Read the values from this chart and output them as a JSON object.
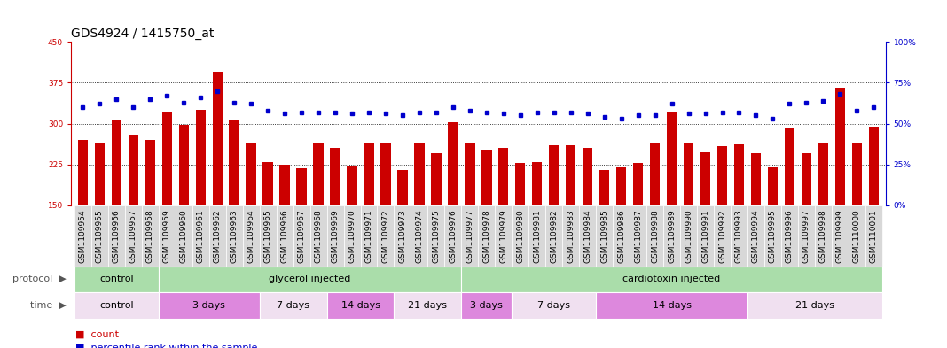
{
  "title": "GDS4924 / 1415750_at",
  "samples": [
    "GSM1109954",
    "GSM1109955",
    "GSM1109956",
    "GSM1109957",
    "GSM1109958",
    "GSM1109959",
    "GSM1109960",
    "GSM1109961",
    "GSM1109962",
    "GSM1109963",
    "GSM1109964",
    "GSM1109965",
    "GSM1109966",
    "GSM1109967",
    "GSM1109968",
    "GSM1109969",
    "GSM1109970",
    "GSM1109971",
    "GSM1109972",
    "GSM1109973",
    "GSM1109974",
    "GSM1109975",
    "GSM1109976",
    "GSM1109977",
    "GSM1109978",
    "GSM1109979",
    "GSM1109980",
    "GSM1109981",
    "GSM1109982",
    "GSM1109983",
    "GSM1109984",
    "GSM1109985",
    "GSM1109986",
    "GSM1109987",
    "GSM1109988",
    "GSM1109989",
    "GSM1109990",
    "GSM1109991",
    "GSM1109992",
    "GSM1109993",
    "GSM1109994",
    "GSM1109995",
    "GSM1109996",
    "GSM1109997",
    "GSM1109998",
    "GSM1109999",
    "GSM1110000",
    "GSM1110001"
  ],
  "counts": [
    270,
    265,
    308,
    280,
    270,
    320,
    298,
    325,
    395,
    305,
    265,
    230,
    225,
    218,
    265,
    255,
    222,
    265,
    263,
    215,
    265,
    245,
    303,
    265,
    252,
    255,
    228,
    230,
    260,
    260,
    255,
    215,
    220,
    228,
    263,
    320,
    265,
    248,
    258,
    262,
    245,
    220,
    293,
    245,
    263,
    365,
    265,
    295
  ],
  "percentiles": [
    60,
    62,
    65,
    60,
    65,
    67,
    63,
    66,
    70,
    63,
    62,
    58,
    56,
    57,
    57,
    57,
    56,
    57,
    56,
    55,
    57,
    57,
    60,
    58,
    57,
    56,
    55,
    57,
    57,
    57,
    56,
    54,
    53,
    55,
    55,
    62,
    56,
    56,
    57,
    57,
    55,
    53,
    62,
    63,
    64,
    68,
    58,
    60
  ],
  "ylim_left": [
    150,
    450
  ],
  "ylim_right": [
    0,
    100
  ],
  "yticks_left": [
    150,
    225,
    300,
    375,
    450
  ],
  "yticks_right": [
    0,
    25,
    50,
    75,
    100
  ],
  "bar_color": "#cc0000",
  "dot_color": "#0000cc",
  "bar_bottom": 150,
  "proto_segs": [
    {
      "label": "control",
      "start": 0,
      "end": 4,
      "color": "#aaddaa"
    },
    {
      "label": "glycerol injected",
      "start": 5,
      "end": 22,
      "color": "#aaddaa"
    },
    {
      "label": "cardiotoxin injected",
      "start": 23,
      "end": 47,
      "color": "#aaddaa"
    }
  ],
  "time_segs": [
    {
      "label": "control",
      "start": 0,
      "end": 4,
      "color": "#f0e0f0"
    },
    {
      "label": "3 days",
      "start": 5,
      "end": 10,
      "color": "#dd88dd"
    },
    {
      "label": "7 days",
      "start": 11,
      "end": 14,
      "color": "#f0e0f0"
    },
    {
      "label": "14 days",
      "start": 15,
      "end": 18,
      "color": "#dd88dd"
    },
    {
      "label": "21 days",
      "start": 19,
      "end": 22,
      "color": "#f0e0f0"
    },
    {
      "label": "3 days",
      "start": 23,
      "end": 25,
      "color": "#dd88dd"
    },
    {
      "label": "7 days",
      "start": 26,
      "end": 30,
      "color": "#f0e0f0"
    },
    {
      "label": "14 days",
      "start": 31,
      "end": 39,
      "color": "#dd88dd"
    },
    {
      "label": "21 days",
      "start": 40,
      "end": 47,
      "color": "#f0e0f0"
    }
  ],
  "title_fontsize": 10,
  "tick_fontsize": 6.5,
  "ann_fontsize": 8,
  "seg_fontsize": 8
}
